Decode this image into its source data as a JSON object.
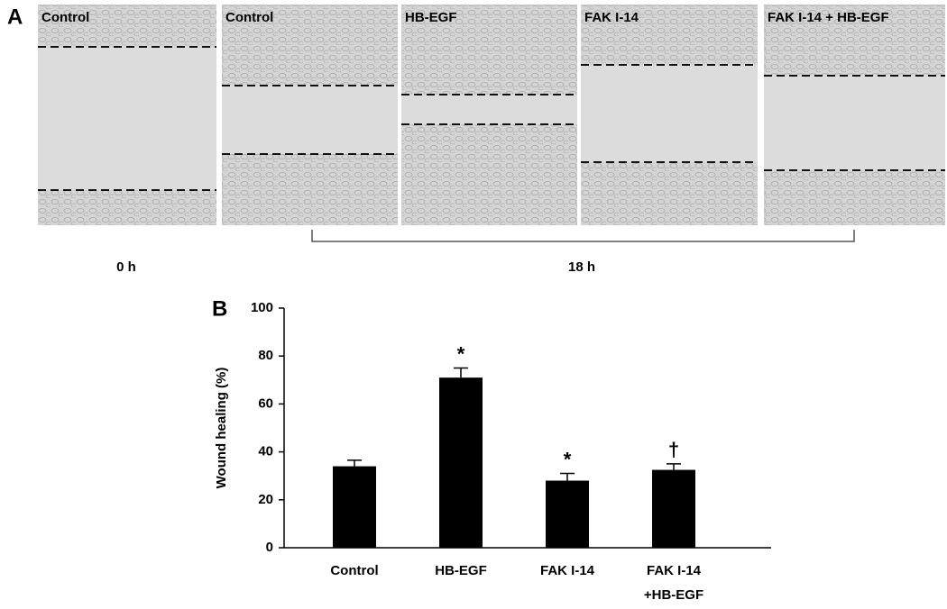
{
  "panel_a": {
    "label": "A",
    "panels": [
      "Control",
      "Control",
      "HB-EGF",
      "FAK I-14",
      "FAK I-14 + HB-EGF"
    ],
    "times": [
      "0 h",
      "18 h"
    ]
  },
  "chart_data": {
    "type": "bar",
    "panel_label": "B",
    "ylabel": "Wound healing (%)",
    "categories": [
      "Control",
      "HB-EGF",
      "FAK I-14",
      "FAK I-14\n+HB-EGF"
    ],
    "values": [
      34,
      71,
      28,
      32.5
    ],
    "errors": [
      2.5,
      4,
      3,
      2.5
    ],
    "annotations": [
      null,
      "*",
      "*",
      "†"
    ],
    "color": "#000000",
    "ylim": [
      0,
      100
    ],
    "yticks": [
      0,
      20,
      40,
      60,
      80,
      100
    ]
  }
}
